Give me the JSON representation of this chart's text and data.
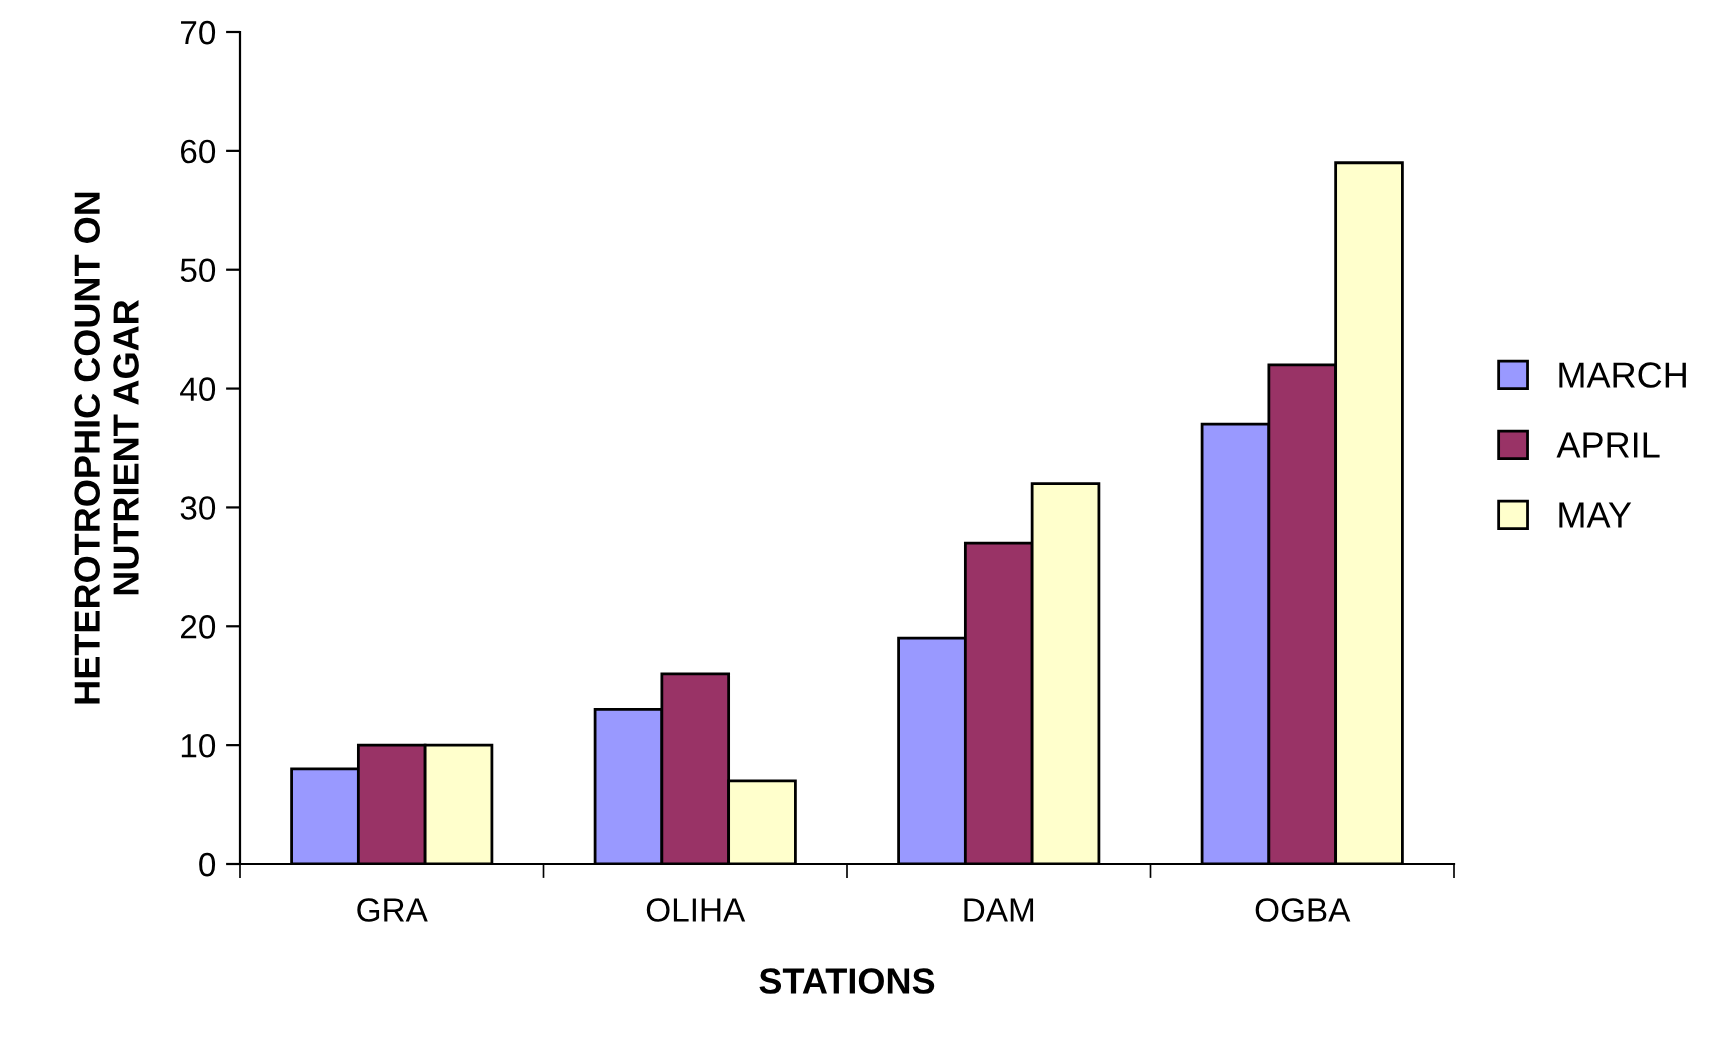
{
  "chart_data": {
    "type": "bar",
    "xlabel": "STATIONS",
    "ylabel": "HETEROTROPHIC COUNT ON\nNUTRIENT AGAR",
    "categories": [
      "GRA",
      "OLIHA",
      "DAM",
      "OGBA"
    ],
    "series": [
      {
        "name": "MARCH",
        "color": "#9999ff",
        "values": [
          8,
          13,
          19,
          37
        ]
      },
      {
        "name": "APRIL",
        "color": "#993366",
        "values": [
          10,
          16,
          27,
          42
        ]
      },
      {
        "name": "MAY",
        "color": "#ffffcc",
        "values": [
          10,
          7,
          32,
          59
        ]
      }
    ],
    "ylim": [
      0,
      70
    ],
    "yticks": [
      0,
      10,
      20,
      30,
      40,
      50,
      60,
      70
    ],
    "grid": false,
    "legend": "right"
  }
}
